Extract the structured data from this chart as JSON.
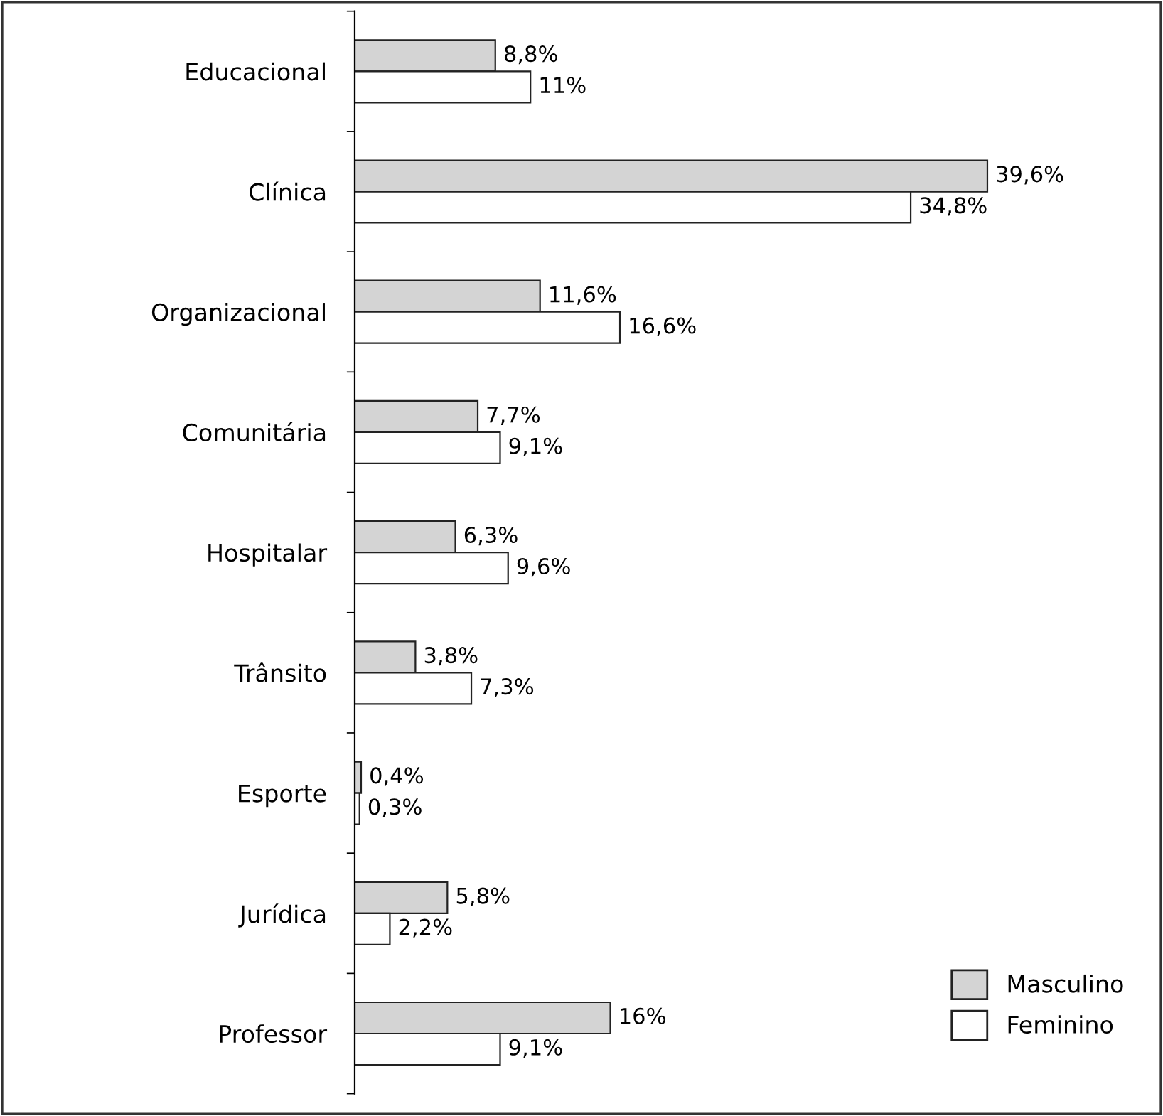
{
  "chart_data": {
    "type": "bar",
    "orientation": "horizontal",
    "categories": [
      "Educacional",
      "Clínica",
      "Organizacional",
      "Comunitária",
      "Hospitalar",
      "Trânsito",
      "Esporte",
      "Jurídica",
      "Professor"
    ],
    "series": [
      {
        "name": "Masculino",
        "color": "#d4d4d4",
        "values": [
          8.8,
          39.6,
          11.6,
          7.7,
          6.3,
          3.8,
          0.4,
          5.8,
          16
        ],
        "value_labels": [
          "8,8%",
          "39,6%",
          "11,6%",
          "7,7%",
          "6,3%",
          "3,8%",
          "0,4%",
          "5,8%",
          "16%"
        ]
      },
      {
        "name": "Feminino",
        "color": "#ffffff",
        "values": [
          11,
          34.8,
          16.6,
          9.1,
          9.6,
          7.3,
          0.3,
          2.2,
          9.1
        ],
        "value_labels": [
          "11%",
          "34,8%",
          "16,6%",
          "9,1%",
          "9,6%",
          "7,3%",
          "0,3%",
          "2,2%",
          "9,1%"
        ]
      }
    ],
    "legend": "bottom right",
    "grid": false,
    "tick_labels": "y"
  }
}
